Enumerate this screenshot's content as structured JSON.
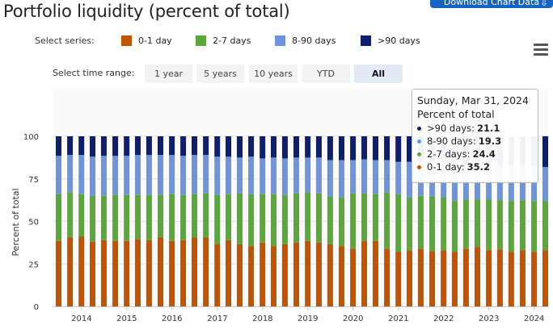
{
  "title": "Portfolio liquidity (percent of total)",
  "download_label": "Download Chart Data",
  "download_icon": "download-icon",
  "select_series_label": "Select series:",
  "select_time_label": "Select time range:",
  "time_ranges": [
    "1 year",
    "5 years",
    "10 years",
    "YTD",
    "All"
  ],
  "active_time_range": "All",
  "colors": {
    "d0_1": "#c25400",
    "d2_7": "#5aa83a",
    "d8_90": "#6e94de",
    "d90": "#0d1f6e"
  },
  "tooltip": {
    "date": "Sunday, Mar 31, 2024",
    "subtitle": "Percent of total",
    "rows": [
      {
        "label": ">90 days:",
        "value": "21.1"
      },
      {
        "label": "8-90 days:",
        "value": "19.3"
      },
      {
        "label": "2-7 days:",
        "value": "24.4"
      },
      {
        "label": "0-1 day:",
        "value": "35.2"
      }
    ]
  },
  "chart_data": {
    "type": "bar",
    "stacked": true,
    "ylabel": "Percent of total",
    "ylim": [
      0,
      100
    ],
    "yticks": [
      0,
      25,
      50,
      75,
      100
    ],
    "xtick_labels": [
      "2014",
      "2015",
      "2016",
      "2017",
      "2018",
      "2019",
      "2020",
      "2021",
      "2022",
      "2023",
      "2024"
    ],
    "x_start": "2013-06-30",
    "x_end": "2024-03-31",
    "frequency": "quarterly",
    "grid": true,
    "legend_position": "top",
    "series": [
      {
        "name": "0-1 day",
        "values": [
          38.5,
          40.5,
          41,
          38,
          39,
          38.5,
          38.5,
          39.5,
          39,
          40.5,
          38.5,
          39,
          40.5,
          40.5,
          36.5,
          39,
          36.5,
          35.5,
          37.5,
          35.5,
          36.5,
          37.5,
          38.5,
          37.5,
          36.5,
          35.5,
          34,
          38.5,
          38.5,
          34,
          32,
          33,
          34,
          32.5,
          33,
          32,
          34,
          35,
          33,
          33.5,
          32,
          33,
          32,
          33,
          35.2
        ]
      },
      {
        "name": "2-7 days",
        "values": [
          27.5,
          26.5,
          25,
          27,
          26,
          27,
          27,
          26,
          26.5,
          25,
          27.5,
          26.5,
          25.5,
          26,
          29,
          27,
          30,
          30.5,
          28.5,
          30.5,
          29,
          29,
          28.5,
          29,
          28,
          28.5,
          32.5,
          28,
          27.5,
          33,
          34,
          31,
          31,
          32,
          31,
          30,
          29,
          28,
          30,
          29,
          30,
          29.5,
          30,
          29,
          24.4
        ]
      },
      {
        "name": "8-90 days",
        "values": [
          22.5,
          22,
          23,
          23,
          23.5,
          23,
          23,
          23.5,
          23.5,
          23.5,
          23,
          23,
          23,
          22.5,
          22.5,
          22,
          21,
          22,
          21,
          21.5,
          21.5,
          21,
          20.5,
          21,
          21.5,
          22,
          19.5,
          20,
          20,
          19,
          19,
          21,
          20,
          20.5,
          20.5,
          21,
          20,
          20,
          20,
          20.5,
          21,
          20.5,
          20.5,
          20,
          19.3
        ]
      },
      {
        "name": ">90 days",
        "values": [
          11.5,
          11,
          11,
          12,
          11.5,
          11.5,
          11.5,
          11,
          11,
          11,
          11,
          11.5,
          11,
          11,
          12,
          12,
          12.5,
          12,
          13,
          12.5,
          13,
          12.5,
          12.5,
          12.5,
          14,
          14,
          14,
          13.5,
          14,
          14,
          15,
          15,
          15,
          15,
          15.5,
          17,
          17,
          17,
          17,
          17,
          17,
          17,
          17.5,
          18,
          21.1
        ]
      }
    ]
  }
}
